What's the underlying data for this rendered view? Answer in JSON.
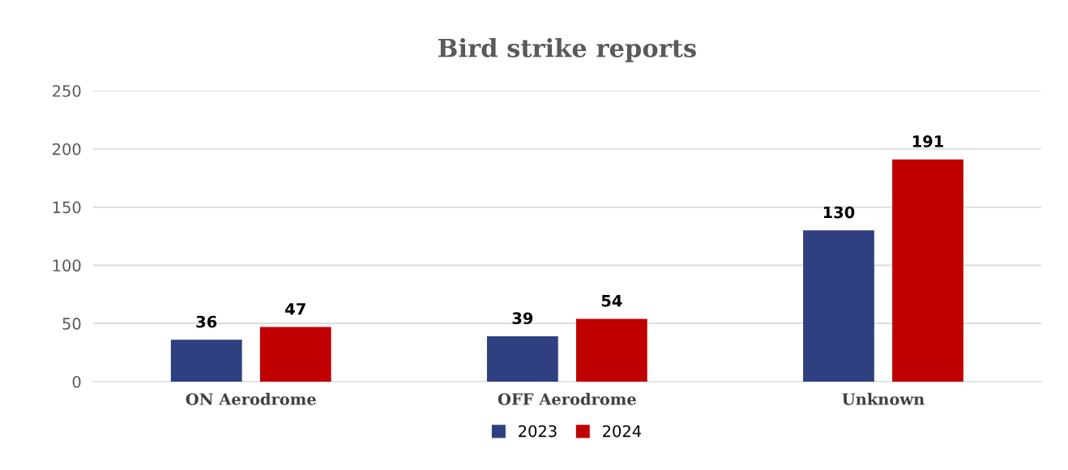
{
  "chart_data": {
    "type": "bar",
    "title": "Bird strike reports",
    "categories": [
      "ON Aerodrome",
      "OFF Aerodrome",
      "Unknown"
    ],
    "series": [
      {
        "name": "2023",
        "color": "#2e4080",
        "values": [
          36,
          39,
          130
        ]
      },
      {
        "name": "2024",
        "color": "#c00000",
        "values": [
          47,
          54,
          191
        ]
      }
    ],
    "ylim": [
      0,
      250
    ],
    "yticks": [
      0,
      50,
      100,
      150,
      200,
      250
    ],
    "grid": "y",
    "legend": "bottom",
    "data_labels": true
  }
}
